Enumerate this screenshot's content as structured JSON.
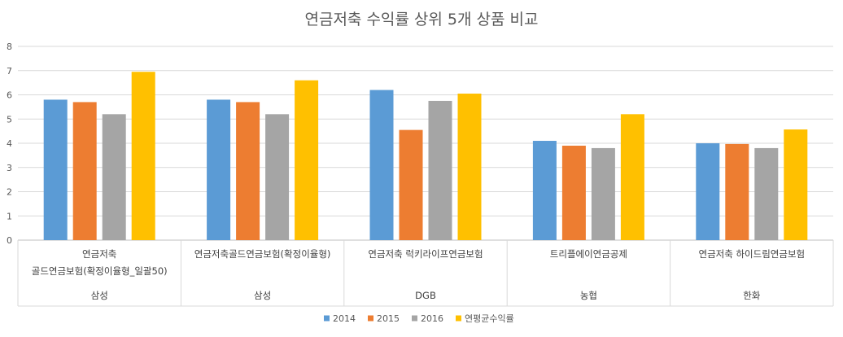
{
  "chart_data": {
    "type": "bar",
    "title": "연금저축 수익률 상위 5개 상품 비교",
    "xlabel": "",
    "ylabel": "",
    "ylim": [
      0,
      8
    ],
    "yticks": [
      0,
      1,
      2,
      3,
      4,
      5,
      6,
      7,
      8
    ],
    "grid": true,
    "legend_position": "bottom",
    "categories": [
      {
        "label_lines": [
          "연금저축",
          "골드연금보험(확정이율형_일괄50)"
        ],
        "group": "삼성"
      },
      {
        "label_lines": [
          "연금저축골드연금보험(확정이율형)"
        ],
        "group": "삼성"
      },
      {
        "label_lines": [
          "연금저축 럭키라이프연금보험"
        ],
        "group": "DGB"
      },
      {
        "label_lines": [
          "트리플에이연금공제"
        ],
        "group": "농협"
      },
      {
        "label_lines": [
          "연금저축 하이드림연금보험"
        ],
        "group": "한화"
      }
    ],
    "series": [
      {
        "name": "2014",
        "color": "#5B9BD5",
        "values": [
          5.8,
          5.8,
          6.2,
          4.1,
          4.0
        ]
      },
      {
        "name": "2015",
        "color": "#ED7D31",
        "values": [
          5.7,
          5.7,
          4.55,
          3.9,
          3.97
        ]
      },
      {
        "name": "2016",
        "color": "#A5A5A5",
        "values": [
          5.2,
          5.2,
          5.75,
          3.8,
          3.8
        ]
      },
      {
        "name": "연평균수익률",
        "color": "#FFC000",
        "values": [
          6.95,
          6.6,
          6.05,
          5.2,
          4.57
        ]
      }
    ]
  }
}
